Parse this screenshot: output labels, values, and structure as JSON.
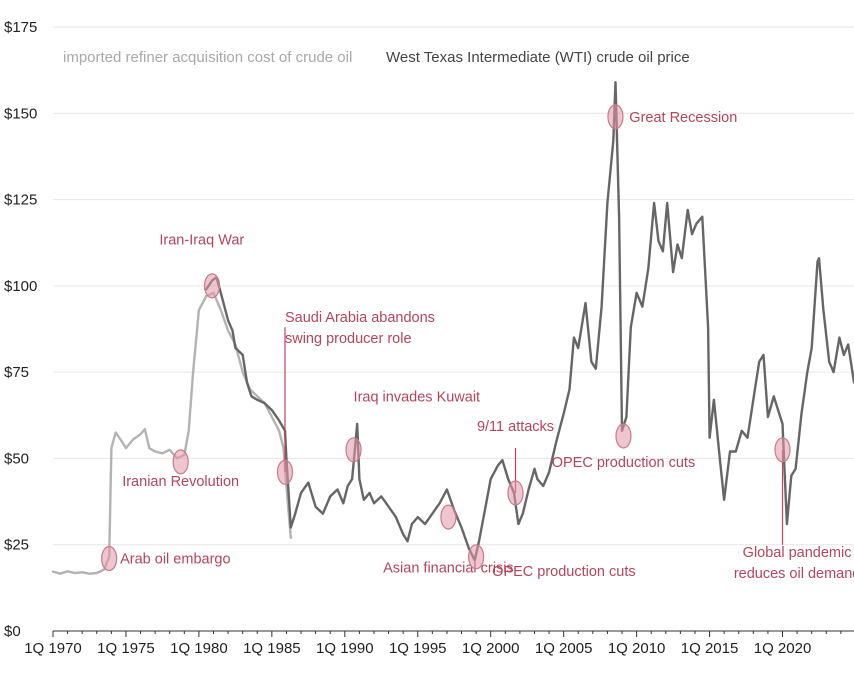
{
  "chart_data": {
    "type": "line",
    "x_unit": "year",
    "xlim": [
      1970,
      2024.9
    ],
    "ylim": [
      0,
      175
    ],
    "y_ticks": [
      0,
      25,
      50,
      75,
      100,
      125,
      150,
      175
    ],
    "y_tick_labels": [
      "$0",
      "$25",
      "$50",
      "$75",
      "$100",
      "$125",
      "$150",
      "$175"
    ],
    "x_ticks": [
      1970,
      1975,
      1980,
      1985,
      1990,
      1995,
      2000,
      2005,
      2010,
      2015,
      2020
    ],
    "x_tick_labels": [
      "1Q 1970",
      "1Q 1975",
      "1Q 1980",
      "1Q 1985",
      "1Q 1990",
      "1Q 1995",
      "1Q 2000",
      "1Q 2005",
      "1Q 2010",
      "1Q 2015",
      "1Q 2020"
    ],
    "legend": [
      {
        "label": "imported refiner acquisition cost of crude oil",
        "color": "#b3b3b3"
      },
      {
        "label": "West Texas Intermediate (WTI) crude oil price",
        "color": "#666666"
      }
    ],
    "series": [
      {
        "name": "imported refiner acquisition cost of crude oil",
        "color": "#b3b3b3",
        "points": [
          [
            1970.0,
            17.2
          ],
          [
            1970.5,
            16.6
          ],
          [
            1971.0,
            17.3
          ],
          [
            1971.5,
            16.8
          ],
          [
            1972.0,
            17.0
          ],
          [
            1972.5,
            16.6
          ],
          [
            1973.0,
            16.8
          ],
          [
            1973.5,
            17.8
          ],
          [
            1973.85,
            21.5
          ],
          [
            1974.0,
            53.0
          ],
          [
            1974.3,
            57.5
          ],
          [
            1974.7,
            55.0
          ],
          [
            1975.0,
            53.0
          ],
          [
            1975.5,
            55.5
          ],
          [
            1976.0,
            57.0
          ],
          [
            1976.3,
            58.5
          ],
          [
            1976.6,
            53.0
          ],
          [
            1977.0,
            52.0
          ],
          [
            1977.5,
            51.5
          ],
          [
            1978.0,
            52.5
          ],
          [
            1978.5,
            50.0
          ],
          [
            1979.0,
            51.0
          ],
          [
            1979.3,
            58.0
          ],
          [
            1979.6,
            75.0
          ],
          [
            1980.0,
            93.0
          ],
          [
            1980.5,
            97.0
          ],
          [
            1981.0,
            98.0
          ],
          [
            1981.5,
            93.0
          ],
          [
            1982.0,
            87.0
          ],
          [
            1982.5,
            83.0
          ],
          [
            1983.0,
            75.0
          ],
          [
            1983.5,
            70.0
          ],
          [
            1984.0,
            68.0
          ],
          [
            1984.5,
            66.0
          ],
          [
            1985.0,
            62.0
          ],
          [
            1985.5,
            58.0
          ],
          [
            1985.8,
            53.0
          ],
          [
            1986.0,
            42.0
          ],
          [
            1986.3,
            27.0
          ]
        ]
      },
      {
        "name": "West Texas Intermediate (WTI) crude oil price",
        "color": "#666666",
        "points": [
          [
            1980.5,
            99.0
          ],
          [
            1980.9,
            101.5
          ],
          [
            1981.2,
            102.5
          ],
          [
            1981.5,
            98.0
          ],
          [
            1982.0,
            90.0
          ],
          [
            1982.3,
            87.0
          ],
          [
            1982.5,
            82.0
          ],
          [
            1983.0,
            80.0
          ],
          [
            1983.3,
            72.0
          ],
          [
            1983.6,
            68.0
          ],
          [
            1984.0,
            67.0
          ],
          [
            1984.5,
            66.0
          ],
          [
            1985.0,
            64.0
          ],
          [
            1985.5,
            61.0
          ],
          [
            1985.9,
            58.0
          ],
          [
            1986.0,
            50.0
          ],
          [
            1986.3,
            30.0
          ],
          [
            1986.6,
            34.0
          ],
          [
            1987.0,
            40.0
          ],
          [
            1987.5,
            43.0
          ],
          [
            1988.0,
            36.0
          ],
          [
            1988.5,
            34.0
          ],
          [
            1989.0,
            39.0
          ],
          [
            1989.5,
            41.0
          ],
          [
            1989.9,
            37.0
          ],
          [
            1990.2,
            42.0
          ],
          [
            1990.5,
            44.0
          ],
          [
            1990.7,
            53.0
          ],
          [
            1990.85,
            60.0
          ],
          [
            1991.0,
            44.0
          ],
          [
            1991.3,
            38.0
          ],
          [
            1991.7,
            40.0
          ],
          [
            1992.0,
            37.0
          ],
          [
            1992.5,
            39.0
          ],
          [
            1993.0,
            36.0
          ],
          [
            1993.5,
            33.0
          ],
          [
            1994.0,
            28.0
          ],
          [
            1994.3,
            26.0
          ],
          [
            1994.6,
            31.0
          ],
          [
            1995.0,
            33.0
          ],
          [
            1995.5,
            31.0
          ],
          [
            1996.0,
            34.0
          ],
          [
            1996.5,
            37.0
          ],
          [
            1997.0,
            41.0
          ],
          [
            1997.5,
            35.0
          ],
          [
            1998.0,
            30.0
          ],
          [
            1998.5,
            24.0
          ],
          [
            1998.9,
            20.5
          ],
          [
            1999.2,
            26.0
          ],
          [
            1999.6,
            35.0
          ],
          [
            2000.0,
            44.0
          ],
          [
            2000.5,
            48.0
          ],
          [
            2000.8,
            49.5
          ],
          [
            2001.2,
            44.0
          ],
          [
            2001.6,
            40.0
          ],
          [
            2001.9,
            31.0
          ],
          [
            2002.2,
            34.0
          ],
          [
            2002.6,
            41.0
          ],
          [
            2003.0,
            47.0
          ],
          [
            2003.2,
            44.0
          ],
          [
            2003.6,
            42.0
          ],
          [
            2004.0,
            46.0
          ],
          [
            2004.5,
            55.0
          ],
          [
            2005.0,
            63.0
          ],
          [
            2005.4,
            70.0
          ],
          [
            2005.7,
            85.0
          ],
          [
            2006.0,
            82.0
          ],
          [
            2006.5,
            95.0
          ],
          [
            2006.9,
            78.0
          ],
          [
            2007.2,
            76.0
          ],
          [
            2007.6,
            94.0
          ],
          [
            2008.0,
            124.0
          ],
          [
            2008.4,
            142.0
          ],
          [
            2008.55,
            159.0
          ],
          [
            2008.8,
            120.0
          ],
          [
            2009.0,
            58.0
          ],
          [
            2009.3,
            62.0
          ],
          [
            2009.6,
            88.0
          ],
          [
            2010.0,
            98.0
          ],
          [
            2010.4,
            94.0
          ],
          [
            2010.8,
            105.0
          ],
          [
            2011.2,
            124.0
          ],
          [
            2011.5,
            113.0
          ],
          [
            2011.8,
            110.0
          ],
          [
            2012.1,
            124.0
          ],
          [
            2012.5,
            104.0
          ],
          [
            2012.8,
            112.0
          ],
          [
            2013.1,
            108.0
          ],
          [
            2013.5,
            122.0
          ],
          [
            2013.8,
            115.0
          ],
          [
            2014.1,
            118.0
          ],
          [
            2014.5,
            120.0
          ],
          [
            2014.9,
            88.0
          ],
          [
            2015.0,
            56.0
          ],
          [
            2015.3,
            67.0
          ],
          [
            2015.7,
            50.0
          ],
          [
            2016.0,
            38.0
          ],
          [
            2016.4,
            52.0
          ],
          [
            2016.8,
            52.0
          ],
          [
            2017.2,
            58.0
          ],
          [
            2017.6,
            56.0
          ],
          [
            2018.0,
            67.0
          ],
          [
            2018.4,
            78.0
          ],
          [
            2018.7,
            80.0
          ],
          [
            2019.0,
            62.0
          ],
          [
            2019.4,
            68.0
          ],
          [
            2019.7,
            64.0
          ],
          [
            2020.0,
            60.0
          ],
          [
            2020.3,
            31.0
          ],
          [
            2020.6,
            45.0
          ],
          [
            2020.9,
            47.0
          ],
          [
            2021.3,
            63.0
          ],
          [
            2021.7,
            75.0
          ],
          [
            2022.0,
            82.0
          ],
          [
            2022.4,
            107.0
          ],
          [
            2022.5,
            108.0
          ],
          [
            2022.8,
            93.0
          ],
          [
            2023.2,
            78.0
          ],
          [
            2023.5,
            75.0
          ],
          [
            2023.9,
            85.0
          ],
          [
            2024.2,
            80.0
          ],
          [
            2024.5,
            83.0
          ],
          [
            2024.9,
            72.0
          ]
        ]
      }
    ],
    "annotations": [
      {
        "label": "Arab oil embargo",
        "x": 1973.85,
        "y": 21,
        "text_x": 1974.6,
        "text_y": 19.5,
        "anchor": "start",
        "lines": [
          "Arab oil embargo"
        ]
      },
      {
        "label": "Iranian Revolution",
        "x": 1978.75,
        "y": 49,
        "text_x": 1978.75,
        "text_y": 42,
        "anchor": "middle",
        "lines": [
          "Iranian Revolution"
        ]
      },
      {
        "label": "Iran-Iraq War",
        "x": 1980.9,
        "y": 100,
        "text_x": 1980.2,
        "text_y": 112,
        "anchor": "middle",
        "lines": [
          "Iran-Iraq War"
        ]
      },
      {
        "label": "Saudi Arabia abandons swing producer role",
        "x": 1985.9,
        "y": 46,
        "text_x": 1985.9,
        "text_y": 89.5,
        "anchor": "start",
        "leader_to": 88,
        "lines": [
          "Saudi Arabia abandons",
          "swing producer role"
        ]
      },
      {
        "label": "Iraq invades Kuwait",
        "x": 1990.6,
        "y": 52.5,
        "text_x": 1990.6,
        "text_y": 66.5,
        "anchor": "start",
        "lines": [
          "Iraq invades Kuwait"
        ]
      },
      {
        "label": "Asian financial crisis",
        "x": 1997.1,
        "y": 33,
        "text_x": 1997.1,
        "text_y": 17,
        "anchor": "middle",
        "lines": [
          "Asian financial crisis"
        ]
      },
      {
        "label": "OPEC production cuts",
        "x": 1999.0,
        "y": 21.5,
        "text_x": 2000.1,
        "text_y": 16,
        "anchor": "start",
        "lines": [
          "OPEC production cuts"
        ]
      },
      {
        "label": "9/11 attacks",
        "x": 2001.7,
        "y": 40,
        "text_x": 2001.7,
        "text_y": 58,
        "anchor": "middle",
        "leader_to": 53,
        "lines": [
          "9/11 attacks"
        ]
      },
      {
        "label": "Great Recession",
        "x": 2008.55,
        "y": 149,
        "text_x": 2009.5,
        "text_y": 147.5,
        "anchor": "start",
        "lines": [
          "Great Recession"
        ]
      },
      {
        "label": "OPEC production cuts",
        "x": 2009.1,
        "y": 56.5,
        "text_x": 2009.1,
        "text_y": 47.5,
        "anchor": "middle",
        "lines": [
          "OPEC production cuts"
        ]
      },
      {
        "label": "Global pandemic reduces oil demand",
        "x": 2020.0,
        "y": 52.5,
        "text_x": 2021.0,
        "text_y": 21.5,
        "anchor": "middle",
        "leader_to": 25,
        "lines": [
          "Global pandemic",
          "reduces oil demand"
        ]
      }
    ]
  }
}
